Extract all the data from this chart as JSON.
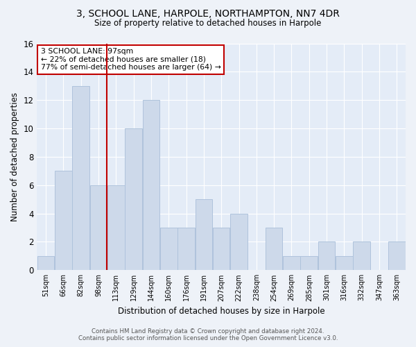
{
  "title": "3, SCHOOL LANE, HARPOLE, NORTHAMPTON, NN7 4DR",
  "subtitle": "Size of property relative to detached houses in Harpole",
  "xlabel": "Distribution of detached houses by size in Harpole",
  "ylabel": "Number of detached properties",
  "categories": [
    "51sqm",
    "66sqm",
    "82sqm",
    "98sqm",
    "113sqm",
    "129sqm",
    "144sqm",
    "160sqm",
    "176sqm",
    "191sqm",
    "207sqm",
    "222sqm",
    "238sqm",
    "254sqm",
    "269sqm",
    "285sqm",
    "301sqm",
    "316sqm",
    "332sqm",
    "347sqm",
    "363sqm"
  ],
  "values": [
    1,
    7,
    13,
    6,
    6,
    10,
    12,
    3,
    3,
    5,
    3,
    4,
    0,
    3,
    1,
    1,
    2,
    1,
    2,
    0,
    2
  ],
  "bar_color": "#cdd9ea",
  "bar_edge_color": "#afc3dc",
  "highlight_index": 3,
  "highlight_line_color": "#c00000",
  "ylim": [
    0,
    16
  ],
  "yticks": [
    0,
    2,
    4,
    6,
    8,
    10,
    12,
    14,
    16
  ],
  "annotation_title": "3 SCHOOL LANE: 97sqm",
  "annotation_line1": "← 22% of detached houses are smaller (18)",
  "annotation_line2": "77% of semi-detached houses are larger (64) →",
  "annotation_box_color": "#ffffff",
  "annotation_box_edge": "#c00000",
  "footer_line1": "Contains HM Land Registry data © Crown copyright and database right 2024.",
  "footer_line2": "Contains public sector information licensed under the Open Government Licence v3.0.",
  "bg_color": "#eef2f8",
  "plot_bg_color": "#e4ecf7"
}
